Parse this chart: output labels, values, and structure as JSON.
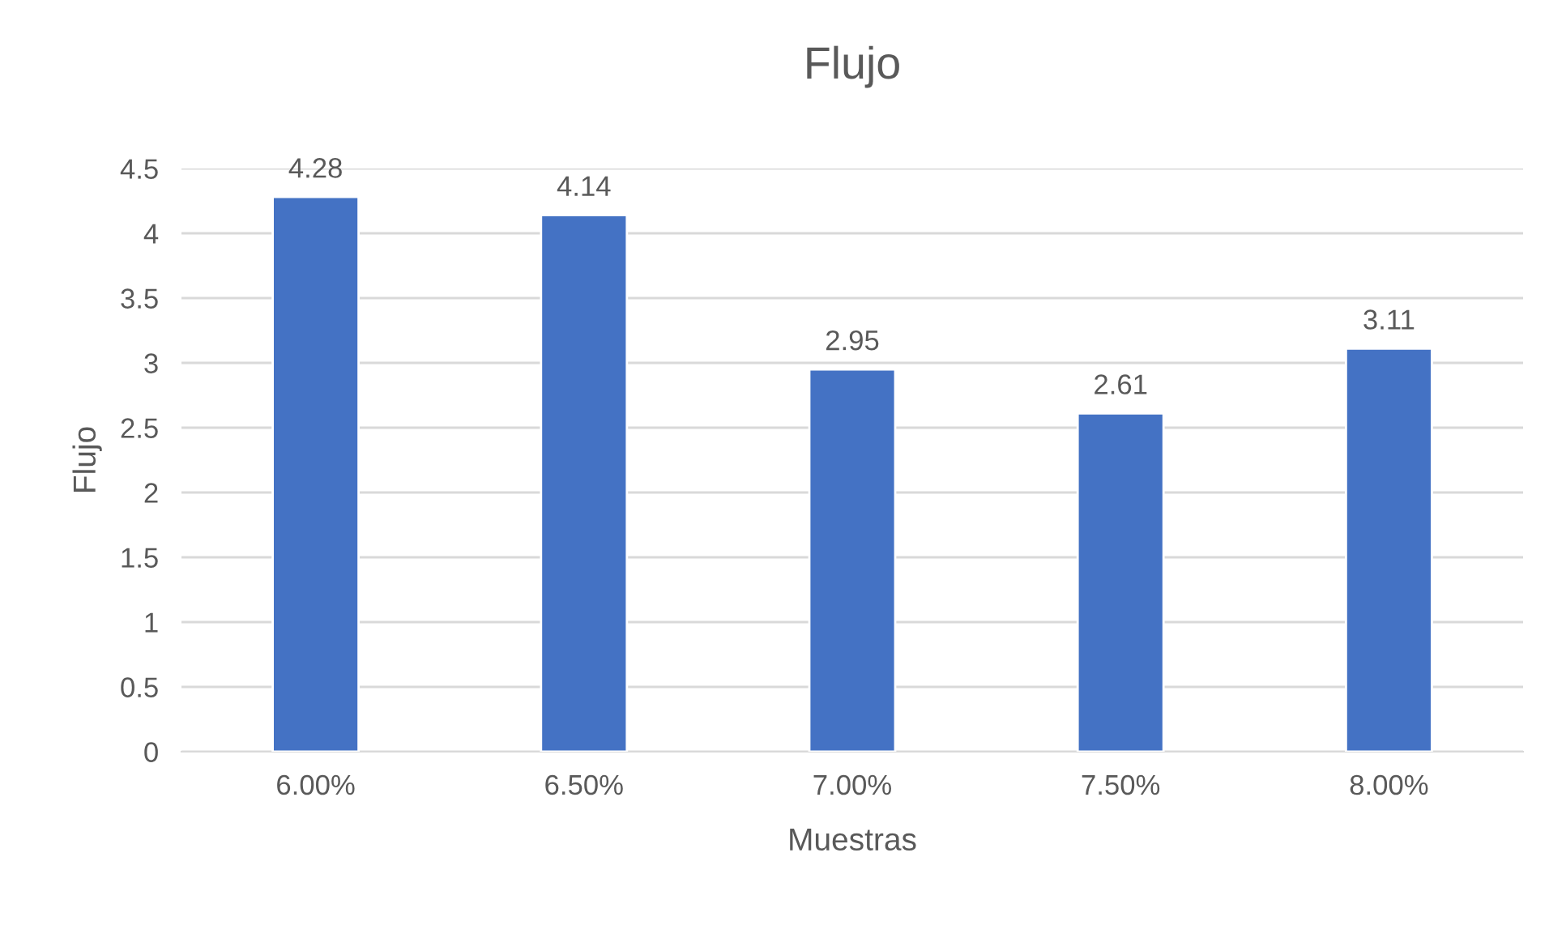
{
  "chart_data": {
    "type": "bar",
    "title": "Flujo",
    "xlabel": "Muestras",
    "ylabel": "Flujo",
    "categories": [
      "6.00%",
      "6.50%",
      "7.00%",
      "7.50%",
      "8.00%"
    ],
    "values": [
      4.28,
      4.14,
      2.95,
      2.61,
      3.11
    ],
    "color": "#4472c4",
    "ylim": [
      0,
      4.5
    ],
    "yticks": [
      0,
      0.5,
      1,
      1.5,
      2,
      2.5,
      3,
      3.5,
      4,
      4.5
    ],
    "grid": "y",
    "data_labels": true
  }
}
